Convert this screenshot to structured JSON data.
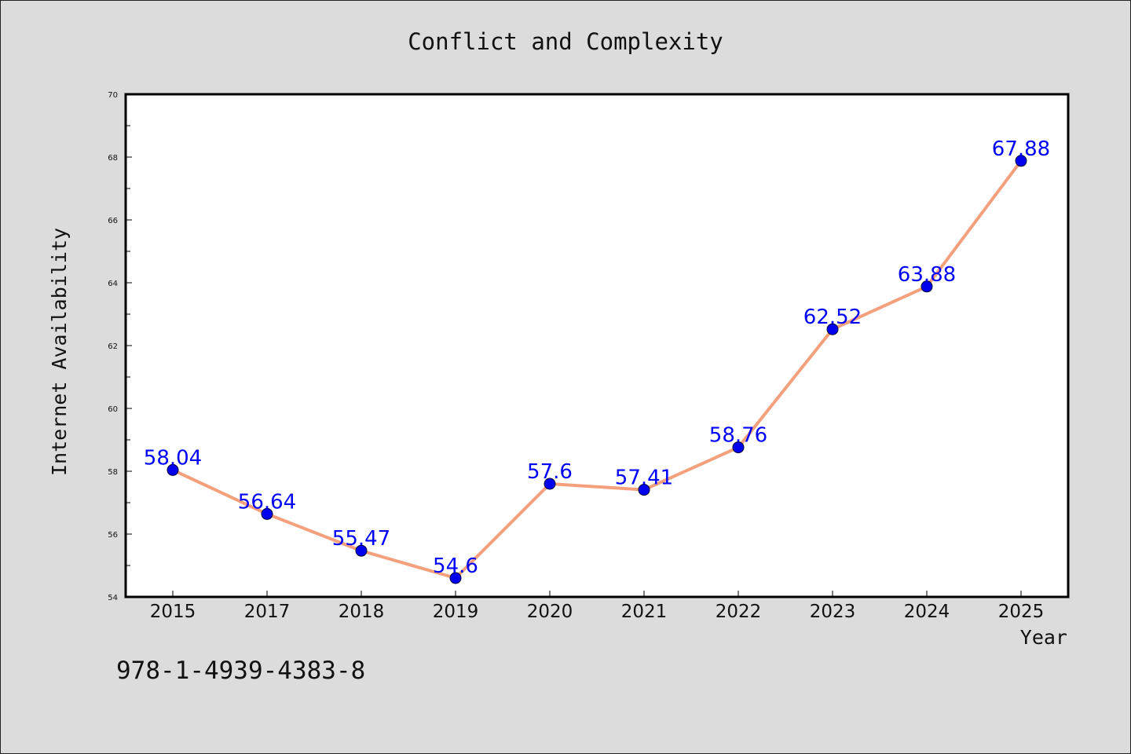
{
  "chart_data": {
    "type": "line",
    "title": "Conflict and Complexity",
    "xlabel": "Year",
    "ylabel": "Internet Availability",
    "categories": [
      "2015",
      "2017",
      "2018",
      "2019",
      "2020",
      "2021",
      "2022",
      "2023",
      "2024",
      "2025"
    ],
    "series": [
      {
        "values": [
          58.04,
          56.64,
          55.47,
          54.6,
          57.6,
          57.41,
          58.76,
          62.52,
          63.88,
          67.88
        ],
        "labels": [
          "58.04",
          "56.64",
          "55.47",
          "54.6",
          "57.6",
          "57.41",
          "58.76",
          "62.52",
          "63.88",
          "67.88"
        ],
        "line_color": "#f4a07c",
        "marker_color": "#0000ee",
        "label_color": "#0000ff"
      }
    ],
    "ylim": [
      54,
      70
    ],
    "yticks": [
      54,
      56,
      58,
      60,
      62,
      64,
      66,
      68,
      70
    ],
    "grid": false,
    "legend": "none"
  },
  "footer": {
    "isbn": "978-1-4939-4383-8"
  }
}
